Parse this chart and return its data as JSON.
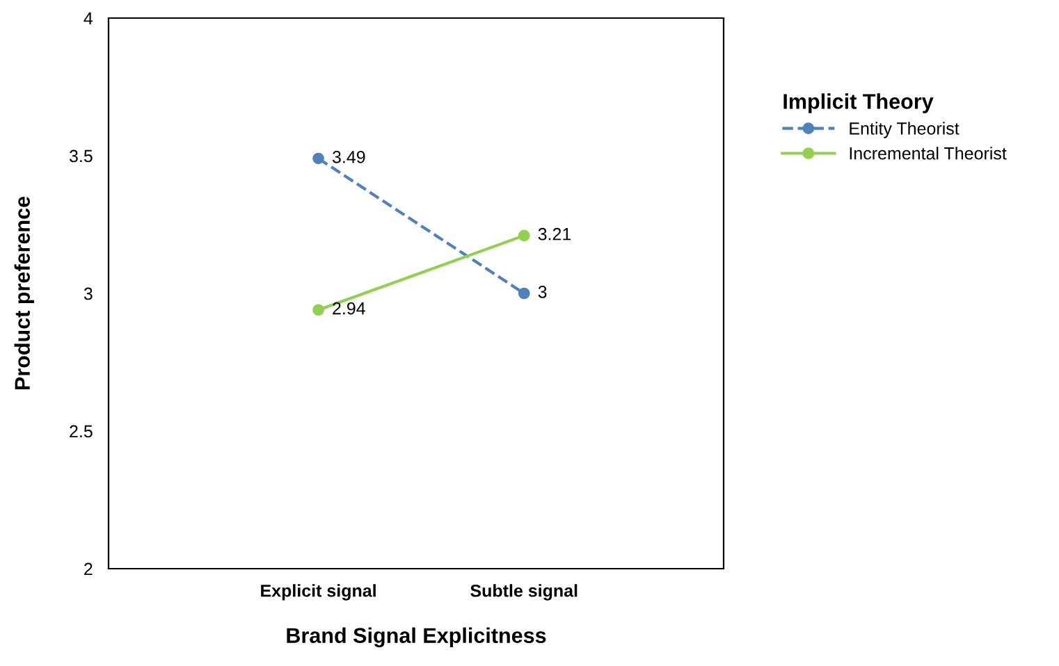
{
  "chart_data": {
    "type": "line",
    "xlabel": "Brand Signal Explicitness",
    "ylabel": "Product preference",
    "legend_title": "Implicit Theory",
    "categories": [
      "Explicit signal",
      "Subtle signal"
    ],
    "series": [
      {
        "name": "Entity Theorist",
        "color": "#4f81bd",
        "values": [
          3.49,
          3
        ],
        "line_style": "dashed"
      },
      {
        "name": "Incremental Theorist",
        "color": "#92d050",
        "values": [
          2.94,
          3.21
        ],
        "line_style": "solid"
      }
    ],
    "ylim": [
      2,
      4
    ],
    "yticks": [
      2,
      2.5,
      3,
      3.5,
      4
    ],
    "marker": "circle",
    "data_labels": true,
    "legend": "right",
    "grid": false
  }
}
